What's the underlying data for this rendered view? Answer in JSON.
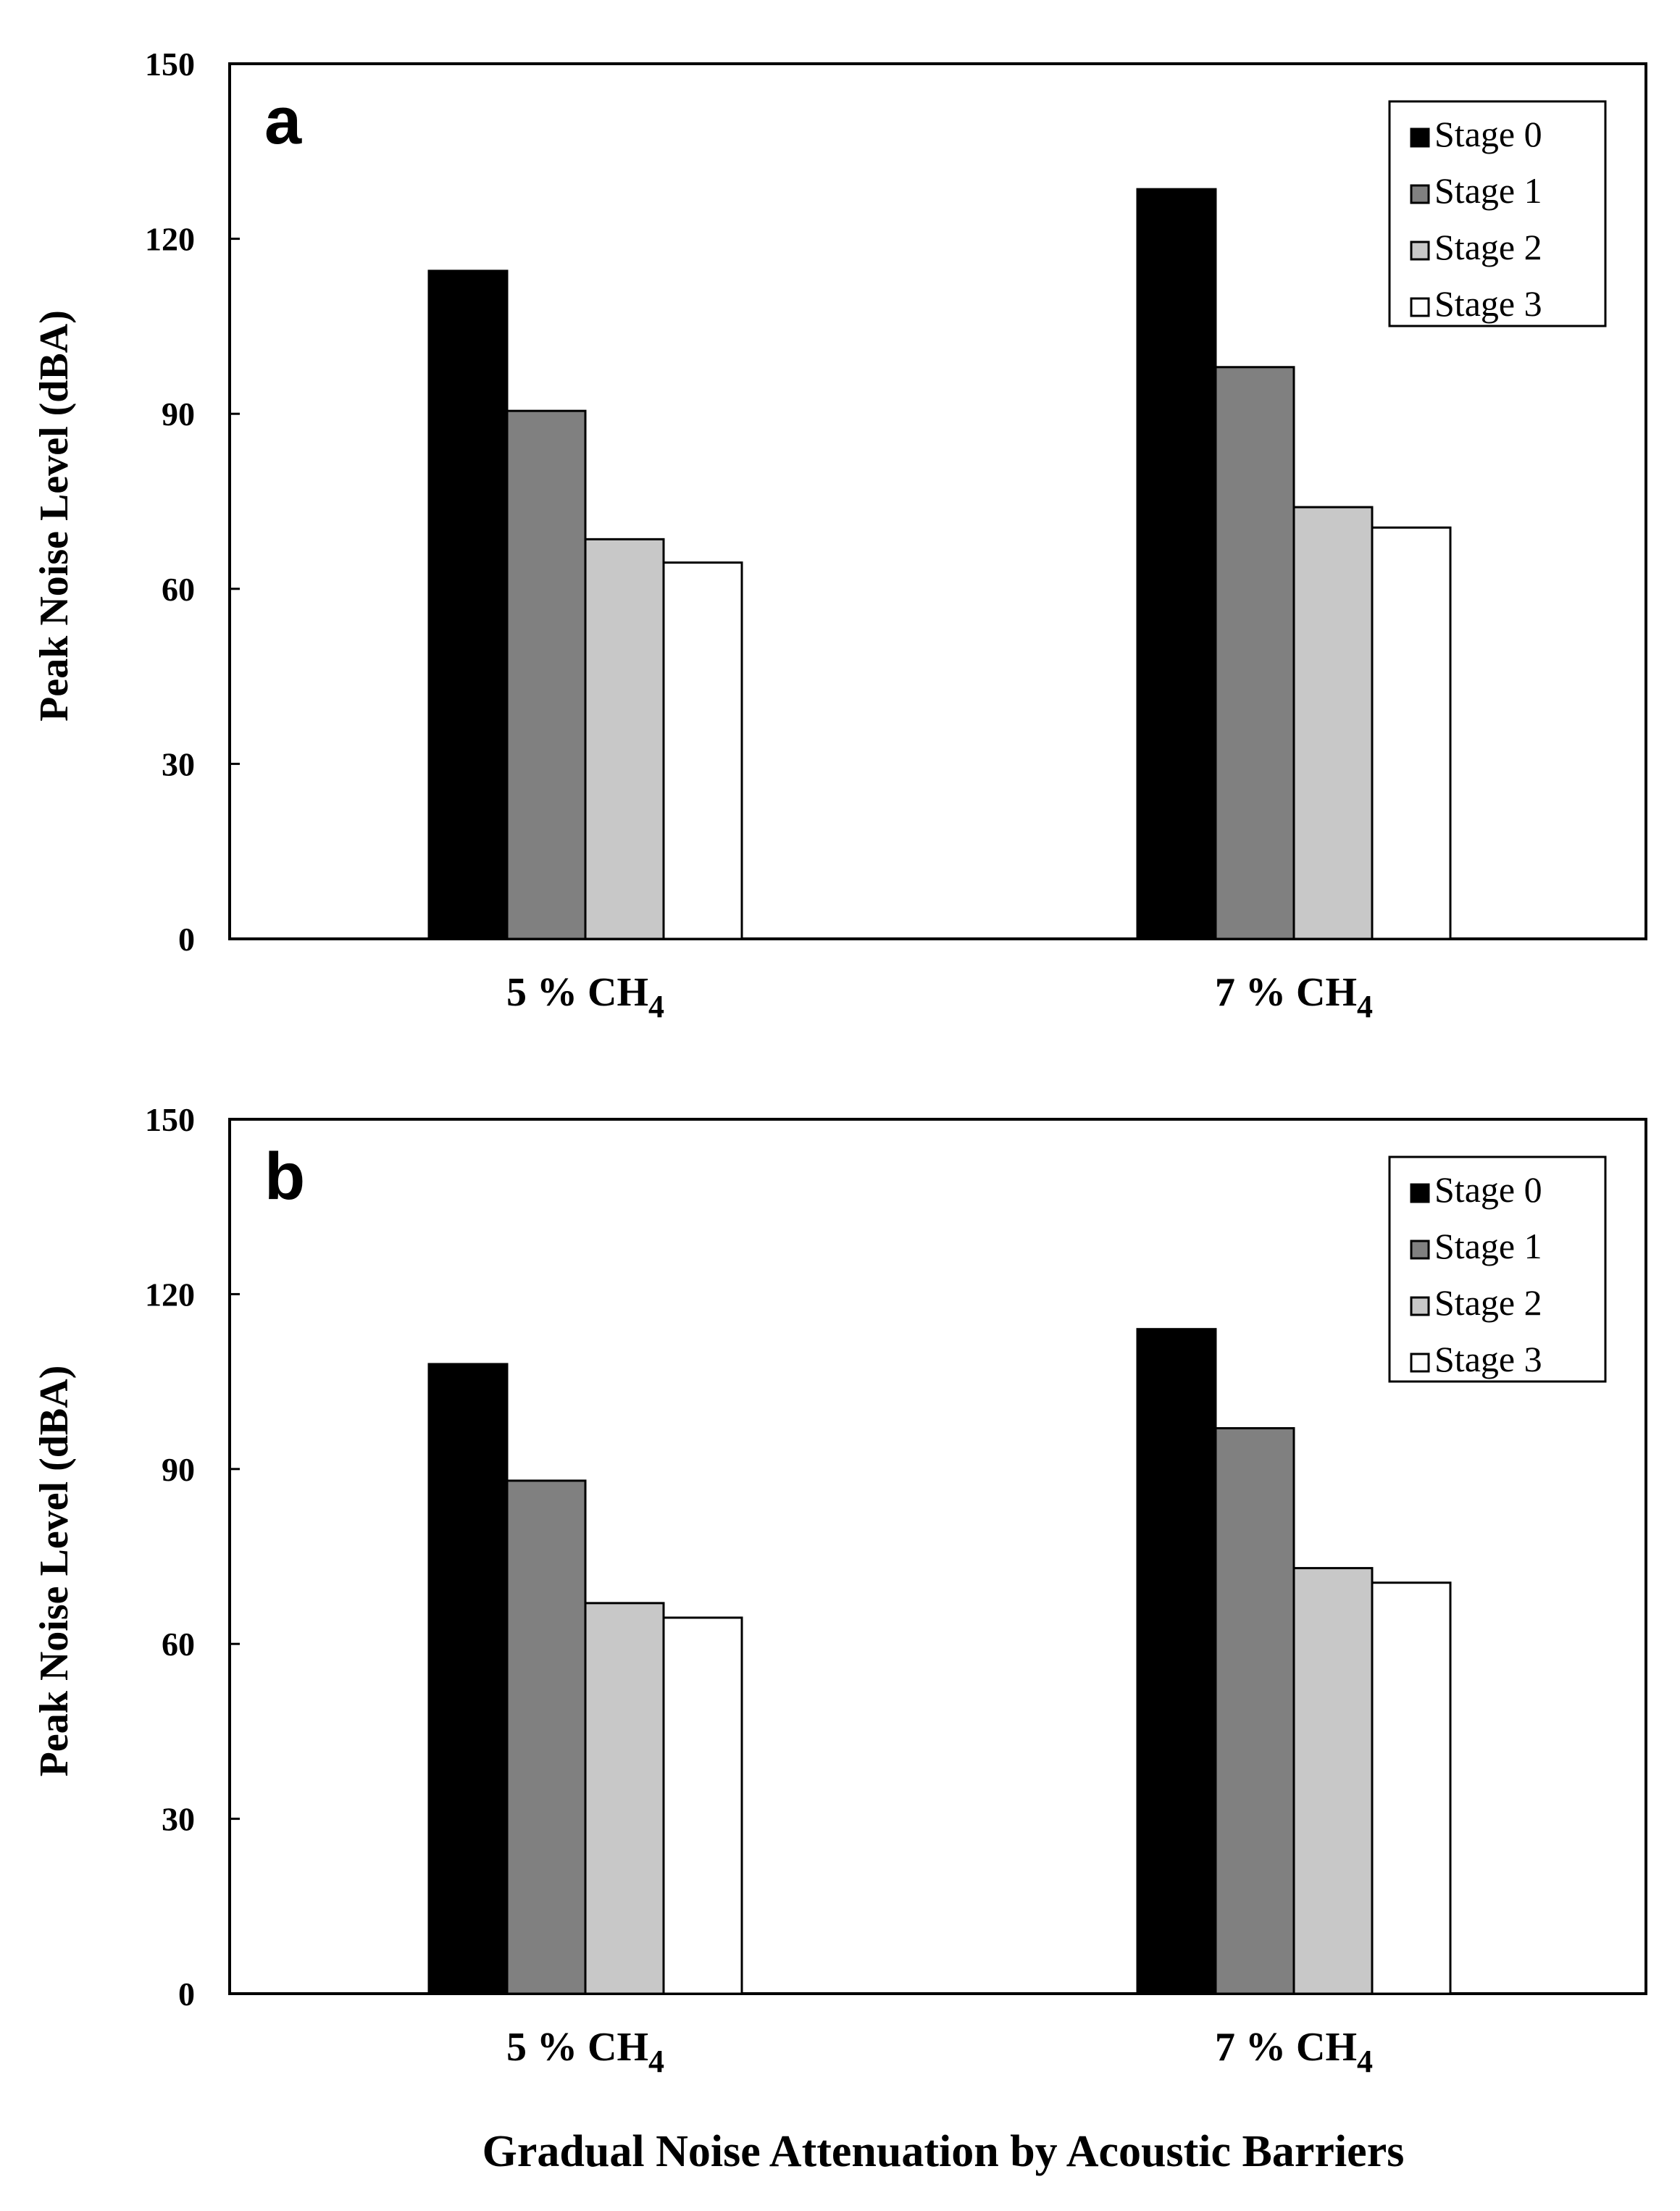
{
  "chart_data": [
    {
      "type": "bar",
      "panel_label": "a",
      "categories": [
        {
          "main": "5 % CH",
          "sub": "4"
        },
        {
          "main": "7 % CH",
          "sub": "4"
        }
      ],
      "series": [
        {
          "name": "Stage 0",
          "color": "#000000",
          "values": [
            114.5,
            128.5
          ]
        },
        {
          "name": "Stage 1",
          "color": "#808080",
          "values": [
            90.5,
            98
          ]
        },
        {
          "name": "Stage 2",
          "color": "#c8c8c8",
          "values": [
            68.5,
            74
          ]
        },
        {
          "name": "Stage 3",
          "color": "#ffffff",
          "values": [
            64.5,
            70.5
          ]
        }
      ],
      "ylabel": "Peak Noise Level (dBA)",
      "ylim": [
        0,
        150
      ],
      "yticks": [
        "0",
        "30",
        "60",
        "90",
        "120",
        "150"
      ],
      "legend_position": "top-right",
      "grid": false
    },
    {
      "type": "bar",
      "panel_label": "b",
      "categories": [
        {
          "main": "5 % CH",
          "sub": "4"
        },
        {
          "main": "7 % CH",
          "sub": "4"
        }
      ],
      "series": [
        {
          "name": "Stage 0",
          "color": "#000000",
          "values": [
            108,
            114
          ]
        },
        {
          "name": "Stage 1",
          "color": "#808080",
          "values": [
            88,
            97
          ]
        },
        {
          "name": "Stage 2",
          "color": "#c8c8c8",
          "values": [
            67,
            73
          ]
        },
        {
          "name": "Stage 3",
          "color": "#ffffff",
          "values": [
            64.5,
            70.5
          ]
        }
      ],
      "ylabel": "Peak Noise Level (dBA)",
      "ylim": [
        0,
        150
      ],
      "yticks": [
        "0",
        "30",
        "60",
        "90",
        "120",
        "150"
      ],
      "legend_position": "top-right",
      "grid": false
    }
  ],
  "xlabel": "Gradual Noise Attenuation by Acoustic Barriers"
}
